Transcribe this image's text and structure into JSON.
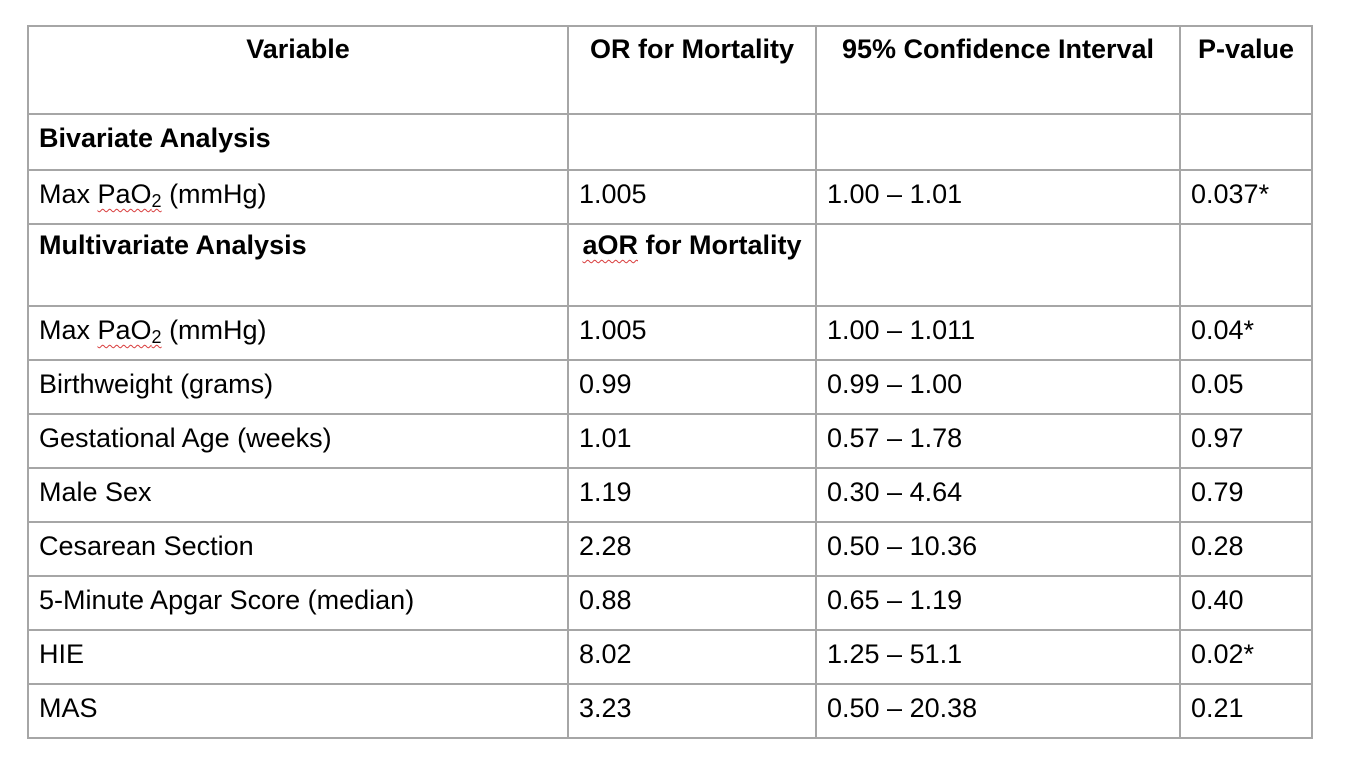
{
  "header": {
    "variable": "Variable",
    "or": "OR for Mortality",
    "ci": "95% Confidence Interval",
    "p": "P-value"
  },
  "bivariate": {
    "label": "Bivariate Analysis",
    "row": {
      "var_main": "Max ",
      "var_sq": "PaO",
      "var_sub": "2",
      "var_tail": " (mmHg)",
      "or": "1.005",
      "ci": "1.00 – 1.01",
      "p": "0.037*"
    }
  },
  "multivariate": {
    "label": "Multivariate Analysis",
    "aor_sq": "aOR",
    "aor_rest": " for Mortality",
    "pao2": {
      "var_main": "Max ",
      "var_sq": "PaO",
      "var_sub": "2",
      "var_tail": " (mmHg)",
      "or": "1.005",
      "ci": "1.00 – 1.011",
      "p": "0.04*"
    },
    "rows": [
      {
        "var": "Birthweight (grams)",
        "or": "0.99",
        "ci": "0.99 – 1.00",
        "p": "0.05"
      },
      {
        "var": "Gestational Age (weeks)",
        "or": "1.01",
        "ci": "0.57 – 1.78",
        "p": "0.97"
      },
      {
        "var": "Male Sex",
        "or": "1.19",
        "ci": "0.30 – 4.64",
        "p": "0.79"
      },
      {
        "var": "Cesarean Section",
        "or": "2.28",
        "ci": "0.50 – 10.36",
        "p": "0.28"
      },
      {
        "var": "5-Minute Apgar Score (median)",
        "or": "0.88",
        "ci": "0.65 – 1.19",
        "p": "0.40"
      },
      {
        "var": "HIE",
        "or": "8.02",
        "ci": "1.25 – 51.1",
        "p": "0.02*"
      },
      {
        "var": "MAS",
        "or": "3.23",
        "ci": "0.50 – 20.38",
        "p": "0.21"
      }
    ]
  }
}
